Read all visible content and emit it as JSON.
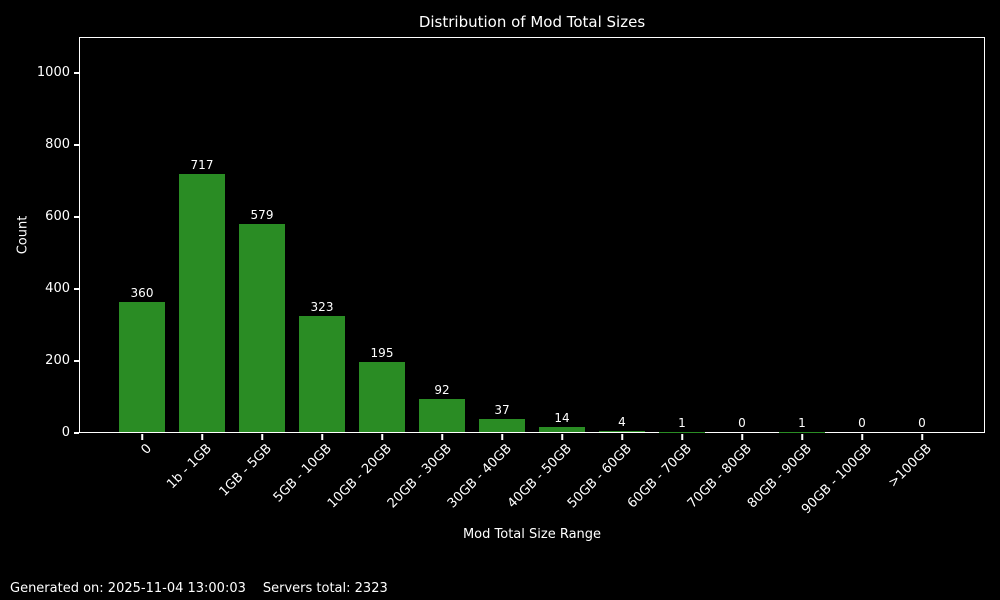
{
  "title": "Distribution of Mod Total Sizes",
  "footer": {
    "generated": "Generated on: 2025-11-04 13:00:03",
    "servers_total": "Servers total: 2323"
  },
  "colors": {
    "background": "#000000",
    "text": "#ffffff",
    "bar": "#2a8c24",
    "spine": "#ffffff"
  },
  "chart_data": {
    "type": "bar",
    "title": "Distribution of Mod Total Sizes",
    "xlabel": "Mod Total Size Range",
    "ylabel": "Count",
    "categories": [
      "0",
      "1b - 1GB",
      "1GB - 5GB",
      "5GB - 10GB",
      "10GB - 20GB",
      "20GB - 30GB",
      "30GB - 40GB",
      "40GB - 50GB",
      "50GB - 60GB",
      "60GB - 70GB",
      "70GB - 80GB",
      "80GB - 90GB",
      "90GB - 100GB",
      ">100GB"
    ],
    "values": [
      360,
      717,
      579,
      323,
      195,
      92,
      37,
      14,
      4,
      1,
      0,
      1,
      0,
      0
    ],
    "ylim": [
      0,
      1100
    ],
    "yticks": [
      0,
      200,
      400,
      600,
      800,
      1000
    ],
    "xticklabel_rotation": 45,
    "grid": false,
    "legend": null
  }
}
